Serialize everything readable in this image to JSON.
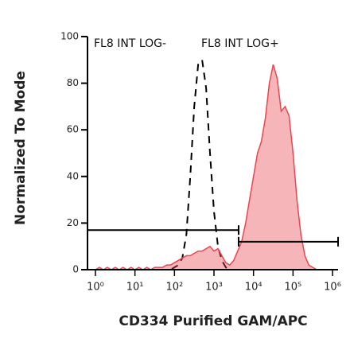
{
  "chart_data": {
    "type": "histogram-overlay",
    "xlabel": "CD334 Purified GAM/APC",
    "ylabel": "Normalized To Mode",
    "xscale": "log",
    "xlim": [
      0.63,
      1380000
    ],
    "ylim": [
      0,
      100
    ],
    "yticks": [
      0,
      20,
      40,
      60,
      80,
      100
    ],
    "xticks": [
      {
        "value": 1,
        "label": "10⁰"
      },
      {
        "value": 10,
        "label": "10¹"
      },
      {
        "value": 100,
        "label": "10²"
      },
      {
        "value": 1000,
        "label": "10³"
      },
      {
        "value": 10000,
        "label": "10⁴"
      },
      {
        "value": 100000,
        "label": "10⁵"
      },
      {
        "value": 1000000,
        "label": "10⁶"
      }
    ],
    "x": [
      1,
      1.26,
      1.58,
      2,
      2.51,
      3.16,
      3.98,
      5.01,
      6.31,
      7.94,
      10,
      12.6,
      15.8,
      20,
      25.1,
      31.6,
      39.8,
      50.1,
      63.1,
      79.4,
      100,
      126,
      158,
      200,
      251,
      316,
      398,
      501,
      631,
      794,
      1000,
      1259,
      1585,
      1995,
      2512,
      3162,
      3981,
      5012,
      6310,
      7943,
      10000,
      12589,
      15849,
      19953,
      25119,
      31623,
      39811,
      50119,
      63096,
      79433,
      100000,
      125893,
      158489,
      199526,
      251189,
      316228,
      398107,
      501187,
      630957,
      794328,
      1000000
    ],
    "series": [
      {
        "color": "#000000",
        "style": "dashed",
        "fill": false,
        "values": [
          0,
          0,
          0,
          0,
          0,
          0,
          0,
          0,
          0,
          0,
          0,
          0,
          0,
          0,
          0,
          0,
          0,
          0,
          0,
          0,
          1,
          2,
          5,
          15,
          40,
          70,
          88,
          90,
          78,
          50,
          25,
          10,
          4,
          1,
          0,
          0,
          0,
          0,
          0,
          0,
          0,
          0,
          0,
          0,
          0,
          0,
          0,
          0,
          0,
          0,
          0,
          0,
          0,
          0,
          0,
          0,
          0,
          0,
          0,
          0,
          0
        ]
      },
      {
        "color": "#e8474f",
        "style": "solid",
        "fill": true,
        "values": [
          0,
          1,
          0,
          1,
          0,
          1,
          0,
          1,
          0,
          1,
          0,
          1,
          0,
          1,
          0,
          1,
          1,
          1,
          2,
          2,
          3,
          4,
          5,
          6,
          6,
          7,
          8,
          8,
          9,
          10,
          8,
          9,
          6,
          3,
          2,
          4,
          8,
          12,
          20,
          30,
          40,
          50,
          55,
          65,
          80,
          88,
          82,
          68,
          70,
          66,
          50,
          30,
          15,
          6,
          2,
          1,
          0,
          0,
          0,
          0,
          0
        ]
      }
    ],
    "gates": [
      {
        "label": "FL8 INT LOG-",
        "range": [
          0.63,
          4200
        ],
        "y": 17
      },
      {
        "label": "FL8 INT LOG+",
        "range": [
          4200,
          1380000
        ],
        "y": 12
      }
    ]
  }
}
